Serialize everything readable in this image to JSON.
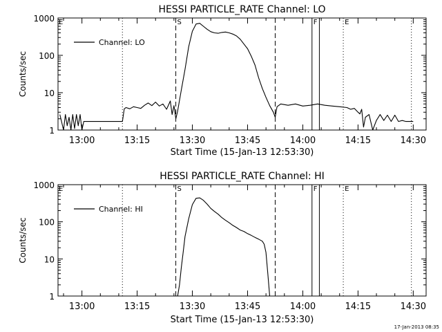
{
  "footer": {
    "timestamp": "17-Jan-2013 08:35"
  },
  "chart_data": [
    {
      "type": "line",
      "title": "HESSI PARTICLE_RATE Channel: LO",
      "xlabel": "Start Time (15-Jan-13 12:53:30)",
      "ylabel": "Counts/sec",
      "y_scale": "log",
      "ylim": [
        1,
        1000
      ],
      "xlim": [
        "12:53:30",
        "14:33:30"
      ],
      "grid": false,
      "legend": {
        "placement": "top-left",
        "label": "Channel: LO"
      },
      "x_ticks": [
        "13:00",
        "13:15",
        "13:30",
        "13:45",
        "14:00",
        "14:15",
        "14:30"
      ],
      "y_ticks": [
        "1",
        "10",
        "100",
        "1000"
      ],
      "markers": [
        {
          "time": "13:25:30",
          "label": "S",
          "style": "dashed"
        },
        {
          "time": "13:52:30",
          "label": "",
          "style": "dashed"
        },
        {
          "time": "13:11:00",
          "label": "",
          "style": "dotted"
        },
        {
          "time": "14:02:30",
          "label": "F",
          "style": "solid"
        },
        {
          "time": "14:04:30",
          "label": "",
          "style": "solid"
        },
        {
          "time": "14:11:00",
          "label": "E",
          "style": "dotted"
        },
        {
          "time": "14:29:30",
          "label": "",
          "style": "dotted"
        }
      ],
      "series": [
        {
          "name": "Channel: LO",
          "x": [
            "12:54:00",
            "12:55:00",
            "12:55:30",
            "12:56:00",
            "12:56:30",
            "12:57:00",
            "12:57:30",
            "12:58:00",
            "12:58:30",
            "12:59:00",
            "12:59:30",
            "13:00:00",
            "13:00:30",
            "13:01:00",
            "13:01:30",
            "13:02:00",
            "13:03:00",
            "13:04:00",
            "13:05:00",
            "13:06:00",
            "13:08:00",
            "13:10:00",
            "13:11:00",
            "13:11:30",
            "13:12:00",
            "13:13:00",
            "13:14:00",
            "13:15:00",
            "13:16:00",
            "13:17:00",
            "13:18:00",
            "13:19:00",
            "13:20:00",
            "13:21:00",
            "13:22:00",
            "13:23:00",
            "13:24:00",
            "13:24:30",
            "13:25:00",
            "13:25:30",
            "13:26:00",
            "13:27:00",
            "13:28:00",
            "13:29:00",
            "13:30:00",
            "13:31:00",
            "13:32:00",
            "13:33:00",
            "13:34:00",
            "13:35:00",
            "13:36:00",
            "13:37:00",
            "13:38:00",
            "13:39:00",
            "13:40:00",
            "13:41:00",
            "13:42:00",
            "13:43:00",
            "13:44:00",
            "13:45:00",
            "13:46:00",
            "13:47:00",
            "13:48:00",
            "13:49:00",
            "13:50:00",
            "13:51:00",
            "13:52:00",
            "13:52:30",
            "13:53:00",
            "13:54:00",
            "13:56:00",
            "13:58:00",
            "14:00:00",
            "14:02:00",
            "14:04:00",
            "14:06:00",
            "14:08:00",
            "14:10:00",
            "14:12:00",
            "14:13:00",
            "14:14:00",
            "14:15:00",
            "14:15:30",
            "14:16:00",
            "14:16:30",
            "14:17:00",
            "14:18:00",
            "14:19:00",
            "14:20:00",
            "14:21:00",
            "14:22:00",
            "14:23:00",
            "14:24:00",
            "14:25:00",
            "14:26:00",
            "14:27:00",
            "14:28:00",
            "14:29:00",
            "14:30:00"
          ],
          "values": [
            2.6,
            1.0,
            2.6,
            1.3,
            2.2,
            1.0,
            2.6,
            1.1,
            2.6,
            1.3,
            2.6,
            1.0,
            1.7,
            1.7,
            1.7,
            1.7,
            1.7,
            1.7,
            1.7,
            1.7,
            1.7,
            1.7,
            1.7,
            3.7,
            4.0,
            3.7,
            4.2,
            4.0,
            3.8,
            4.6,
            5.3,
            4.5,
            5.6,
            4.4,
            5.0,
            3.6,
            6.0,
            2.6,
            4.5,
            2.0,
            3.2,
            12,
            42,
            170,
            440,
            690,
            720,
            600,
            500,
            430,
            400,
            390,
            410,
            420,
            400,
            370,
            330,
            270,
            200,
            150,
            95,
            55,
            25,
            13,
            7.5,
            4.5,
            3.0,
            2.2,
            4.2,
            5.0,
            4.6,
            5.0,
            4.4,
            4.6,
            5.0,
            4.6,
            4.4,
            4.2,
            4.0,
            3.6,
            3.8,
            3.0,
            2.7,
            3.6,
            1.2,
            2.2,
            2.6,
            1.0,
            1.8,
            2.6,
            1.8,
            2.5,
            1.7,
            2.5,
            1.7,
            1.8,
            1.7,
            1.7,
            1.7
          ]
        }
      ]
    },
    {
      "type": "line",
      "title": "HESSI PARTICLE_RATE Channel: HI",
      "xlabel": "Start Time (15-Jan-13 12:53:30)",
      "ylabel": "Counts/sec",
      "y_scale": "log",
      "ylim": [
        1,
        1000
      ],
      "xlim": [
        "12:53:30",
        "14:33:30"
      ],
      "grid": false,
      "legend": {
        "placement": "top-left",
        "label": "Channel: HI"
      },
      "x_ticks": [
        "13:00",
        "13:15",
        "13:30",
        "13:45",
        "14:00",
        "14:15",
        "14:30"
      ],
      "y_ticks": [
        "1",
        "10",
        "100",
        "1000"
      ],
      "markers": [
        {
          "time": "13:25:30",
          "label": "S",
          "style": "dashed"
        },
        {
          "time": "13:52:30",
          "label": "",
          "style": "dashed"
        },
        {
          "time": "13:11:00",
          "label": "",
          "style": "dotted"
        },
        {
          "time": "14:02:30",
          "label": "F",
          "style": "solid"
        },
        {
          "time": "14:04:30",
          "label": "",
          "style": "solid"
        },
        {
          "time": "14:11:00",
          "label": "E",
          "style": "dotted"
        },
        {
          "time": "14:29:30",
          "label": "",
          "style": "dotted"
        }
      ],
      "series": [
        {
          "name": "Channel: HI",
          "x": [
            "13:26:00",
            "13:26:30",
            "13:27:00",
            "13:27:30",
            "13:28:00",
            "13:29:00",
            "13:30:00",
            "13:31:00",
            "13:32:00",
            "13:33:00",
            "13:34:00",
            "13:35:00",
            "13:36:00",
            "13:37:00",
            "13:38:00",
            "13:39:00",
            "13:40:00",
            "13:41:00",
            "13:42:00",
            "13:43:00",
            "13:44:00",
            "13:45:00",
            "13:46:00",
            "13:47:00",
            "13:48:00",
            "13:49:00",
            "13:49:30",
            "13:50:00",
            "13:50:30",
            "13:51:00"
          ],
          "values": [
            1.0,
            2.0,
            6,
            15,
            40,
            120,
            290,
            430,
            440,
            380,
            300,
            230,
            190,
            160,
            130,
            110,
            95,
            80,
            70,
            60,
            55,
            48,
            43,
            38,
            34,
            30,
            25,
            15,
            4,
            1.0
          ]
        }
      ]
    }
  ]
}
